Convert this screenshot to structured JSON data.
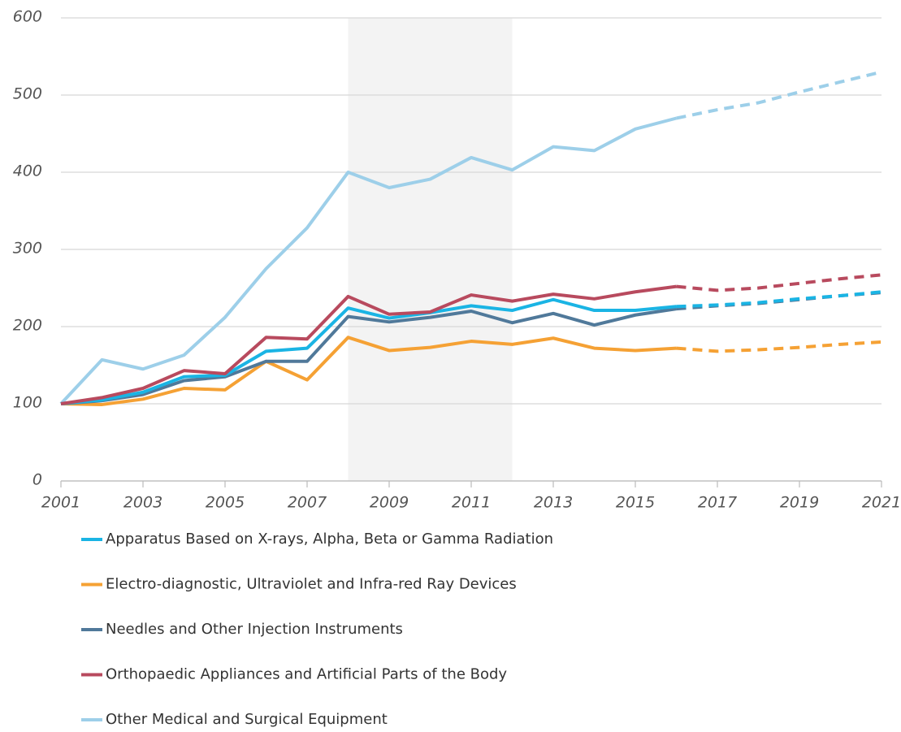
{
  "chart_data": {
    "type": "line",
    "x": [
      2001,
      2002,
      2003,
      2004,
      2005,
      2006,
      2007,
      2008,
      2009,
      2010,
      2011,
      2012,
      2013,
      2014,
      2015,
      2016,
      2017,
      2018,
      2019,
      2020,
      2021
    ],
    "forecast_from": 2016,
    "shaded_x": [
      2008,
      2012
    ],
    "xlim": [
      2001,
      2021
    ],
    "xticks": [
      2001,
      2003,
      2005,
      2007,
      2009,
      2011,
      2013,
      2015,
      2017,
      2019,
      2021
    ],
    "ylim": [
      0,
      600
    ],
    "yticks": [
      0,
      100,
      200,
      300,
      400,
      500,
      600
    ],
    "grid": true,
    "series": [
      {
        "name": "Apparatus Based on X-rays, Alpha, Beta or Gamma Radiation",
        "color": "#1ab4e4",
        "values": [
          100,
          105,
          115,
          135,
          137,
          168,
          172,
          224,
          211,
          218,
          227,
          221,
          235,
          221,
          221,
          226,
          228,
          231,
          236,
          240,
          245
        ]
      },
      {
        "name": "Electro-diagnostic, Ultraviolet and Infra-red Ray Devices",
        "color": "#f5a134",
        "values": [
          100,
          99,
          106,
          120,
          118,
          155,
          131,
          186,
          169,
          173,
          181,
          177,
          185,
          172,
          169,
          172,
          168,
          170,
          173,
          177,
          180
        ]
      },
      {
        "name": "Needles and Other Injection Instruments",
        "color": "#50799a",
        "values": [
          100,
          104,
          112,
          130,
          135,
          155,
          155,
          213,
          206,
          212,
          220,
          205,
          217,
          202,
          215,
          223,
          227,
          230,
          235,
          240,
          244
        ]
      },
      {
        "name": "Orthopaedic Appliances and Artificial Parts of the Body",
        "color": "#b84a5e",
        "values": [
          100,
          108,
          120,
          143,
          139,
          186,
          184,
          239,
          216,
          219,
          241,
          233,
          242,
          236,
          245,
          252,
          247,
          250,
          256,
          262,
          267
        ]
      },
      {
        "name": "Other Medical and Surgical Equipment",
        "color": "#9dcfe9",
        "values": [
          100,
          157,
          145,
          163,
          212,
          275,
          328,
          400,
          380,
          391,
          419,
          403,
          433,
          428,
          456,
          470,
          481,
          490,
          504,
          517,
          530
        ]
      }
    ]
  }
}
